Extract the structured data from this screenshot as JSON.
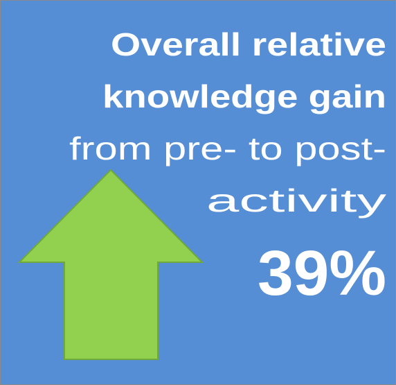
{
  "headline": {
    "lines": [
      "Overall relative",
      "knowledge gain"
    ]
  },
  "subline": {
    "lines": [
      "from pre- to post-",
      "activity"
    ]
  },
  "figure": {
    "text": "39%"
  }
}
